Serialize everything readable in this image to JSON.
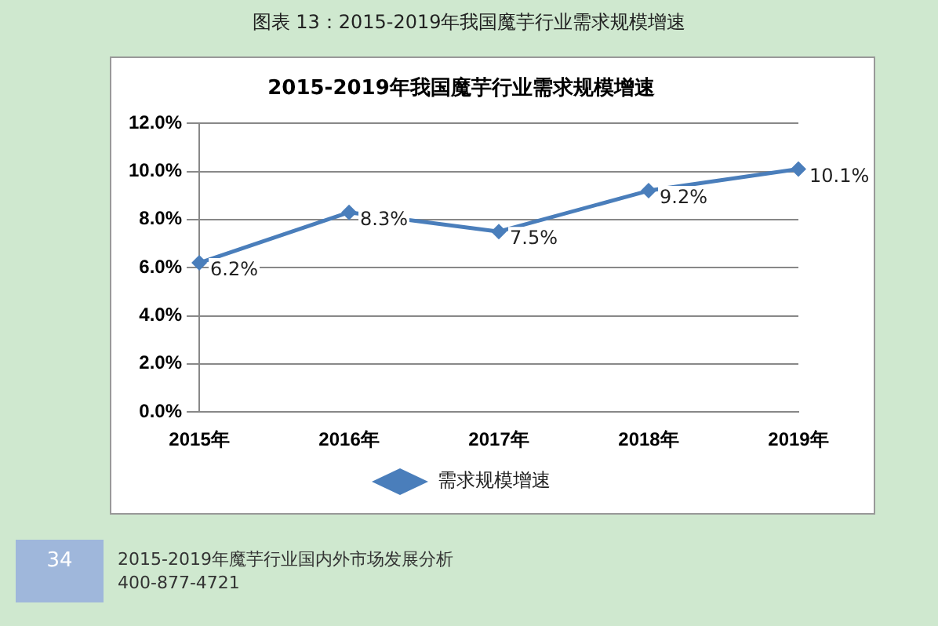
{
  "chart_data": {
    "type": "line",
    "title": "2015-2019年我国魔芋行业需求规模增速",
    "categories": [
      "2015年",
      "2016年",
      "2017年",
      "2018年",
      "2019年"
    ],
    "series": [
      {
        "name": "需求规模增速",
        "color": "#4a7ebb",
        "values": [
          6.2,
          8.3,
          7.5,
          9.2,
          10.1
        ]
      }
    ],
    "ylim": [
      0,
      12
    ],
    "yticks": [
      {
        "value": 0,
        "label": "0.0%"
      },
      {
        "value": 2,
        "label": "2.0%"
      },
      {
        "value": 4,
        "label": "4.0%"
      },
      {
        "value": 6,
        "label": "6.0%"
      },
      {
        "value": 8,
        "label": "8.0%"
      },
      {
        "value": 10,
        "label": "10.0%"
      },
      {
        "value": 12,
        "label": "12.0%"
      }
    ],
    "value_labels": [
      "6.2%",
      "8.3%",
      "7.5%",
      "9.2%",
      "10.1%"
    ],
    "grid": "y",
    "legend": "bottom",
    "marker": "diamond",
    "line_style": "solid",
    "annotations": [
      "图表 13：2015-2019年我国魔芋行业需求规模增速",
      "34",
      "2015-2019年魔芋行业国内外市场发展分析",
      "400-877-4721"
    ]
  }
}
